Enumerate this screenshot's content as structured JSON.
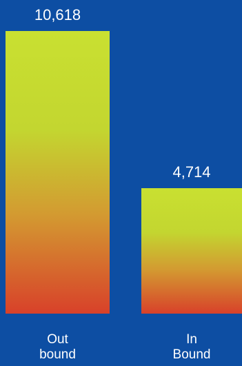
{
  "chart_data": {
    "type": "bar",
    "categories": [
      "Out\nbound",
      "In\nBound"
    ],
    "values": [
      10618,
      4714
    ],
    "value_labels": [
      "10,618",
      "4,714"
    ],
    "ylim": [
      0,
      10618
    ],
    "grid": false,
    "colors": {
      "background": "#0d4ea3",
      "bar_top": "#c9e031",
      "bar_bottom": "#d8412a",
      "text": "#ffffff"
    }
  }
}
